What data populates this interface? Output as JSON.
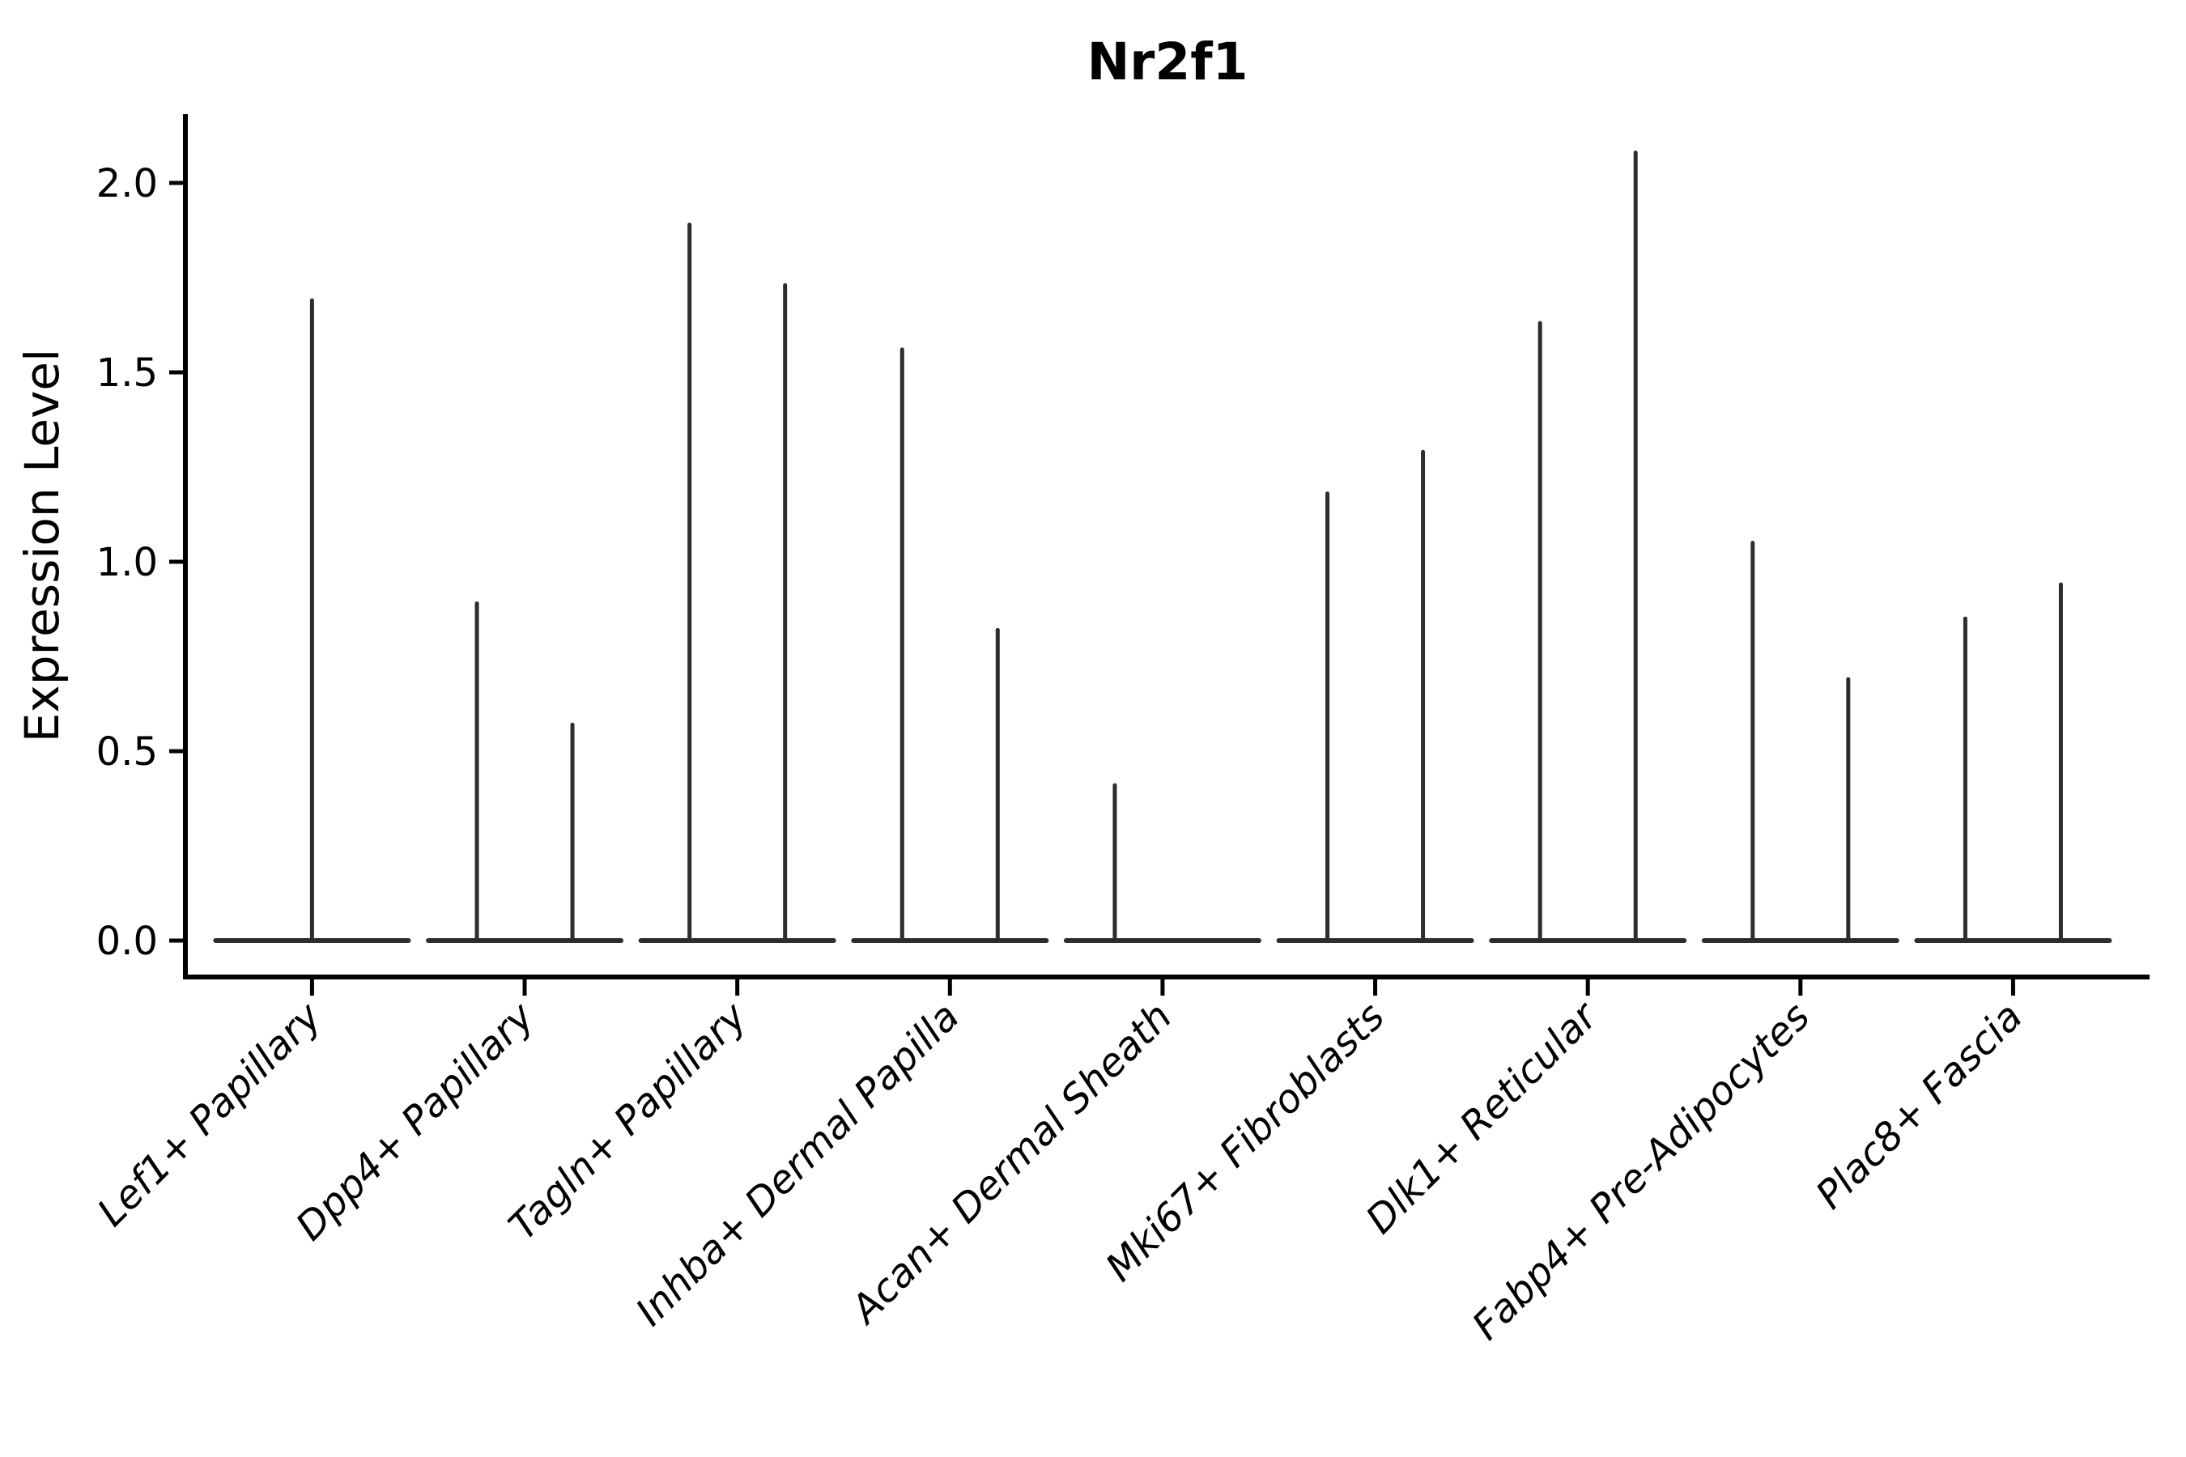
{
  "chart_data": {
    "type": "violin",
    "title": "Nr2f1",
    "xlabel": "",
    "ylabel": "Expression Level",
    "ylim": [
      -0.1,
      2.18
    ],
    "yticks": [
      {
        "value": 0.0,
        "label": "0.0"
      },
      {
        "value": 0.5,
        "label": "0.5"
      },
      {
        "value": 1.0,
        "label": "1.0"
      },
      {
        "value": 1.5,
        "label": "1.5"
      },
      {
        "value": 2.0,
        "label": "2.0"
      }
    ],
    "grid": false,
    "legend": "none",
    "violin_style": "collapsed-spike (wide flat base at 0, thin vertical spike to max expression)",
    "categories": [
      {
        "label": "Lef1+ Papillary",
        "violins": [
          {
            "position": "center",
            "max": 1.69
          }
        ]
      },
      {
        "label": "Dpp4+ Papillary",
        "violins": [
          {
            "position": "left",
            "max": 0.89
          },
          {
            "position": "right",
            "max": 0.57
          }
        ]
      },
      {
        "label": "Tagln+ Papillary",
        "violins": [
          {
            "position": "left",
            "max": 1.89
          },
          {
            "position": "right",
            "max": 1.73
          }
        ]
      },
      {
        "label": "Inhba+ Dermal Papilla",
        "violins": [
          {
            "position": "left",
            "max": 1.56
          },
          {
            "position": "right",
            "max": 0.82
          }
        ]
      },
      {
        "label": "Acan+ Dermal Sheath",
        "violins": [
          {
            "position": "left",
            "max": 0.41
          },
          {
            "position": "right",
            "max": 0.0
          }
        ]
      },
      {
        "label": "Mki67+ Fibroblasts",
        "violins": [
          {
            "position": "left",
            "max": 1.18
          },
          {
            "position": "right",
            "max": 1.29
          }
        ]
      },
      {
        "label": "Dlk1+ Reticular",
        "violins": [
          {
            "position": "left",
            "max": 1.63
          },
          {
            "position": "right",
            "max": 2.08
          }
        ]
      },
      {
        "label": "Fabp4+ Pre-Adipocytes",
        "violins": [
          {
            "position": "left",
            "max": 1.05
          },
          {
            "position": "right",
            "max": 0.69
          }
        ]
      },
      {
        "label": "Plac8+ Fascia",
        "violins": [
          {
            "position": "left",
            "max": 0.85
          },
          {
            "position": "right",
            "max": 0.94
          }
        ]
      }
    ],
    "colors": {
      "violin": "#2d2d2d",
      "axis": "#000000",
      "background": "#ffffff"
    }
  }
}
